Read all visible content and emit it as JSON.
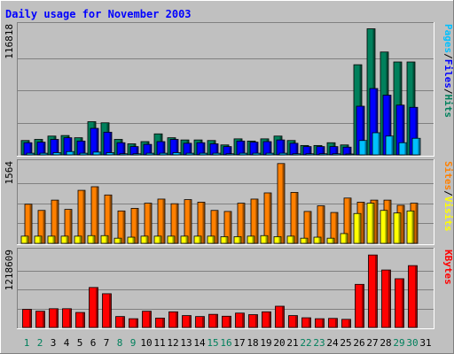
{
  "chart_data": {
    "type": "bar",
    "title": "Daily usage for November 2003",
    "categories": [
      "1",
      "2",
      "3",
      "4",
      "5",
      "6",
      "7",
      "8",
      "9",
      "10",
      "11",
      "12",
      "13",
      "14",
      "15",
      "16",
      "17",
      "18",
      "19",
      "20",
      "21",
      "22",
      "23",
      "24",
      "25",
      "26",
      "27",
      "28",
      "29",
      "30",
      "31"
    ],
    "weekend_days": [
      "1",
      "2",
      "8",
      "9",
      "15",
      "16",
      "22",
      "23",
      "29",
      "30"
    ],
    "panels": [
      {
        "name": "hits-files-pages",
        "ymax_label": "116818",
        "ymax": 116818,
        "legend": [
          "Pages",
          "/",
          "Files",
          "/",
          "Hits"
        ],
        "series": [
          {
            "name": "Hits",
            "color": "#00805c",
            "values": [
              13000,
              14000,
              17000,
              17500,
              15500,
              30000,
              29000,
              14000,
              10000,
              12000,
              19000,
              15500,
              13500,
              13500,
              13000,
              9000,
              14500,
              12500,
              14500,
              17000,
              13000,
              8500,
              8500,
              11000,
              9000,
              81500,
              114000,
              93000,
              84000,
              84000,
              0
            ]
          },
          {
            "name": "Files",
            "color": "#0000ff",
            "values": [
              11000,
              11500,
              14000,
              15500,
              12500,
              24000,
              20500,
              11000,
              7500,
              9500,
              12000,
              14000,
              10500,
              11000,
              10000,
              7500,
              12500,
              11500,
              12000,
              13500,
              10500,
              7500,
              7500,
              7500,
              7000,
              44000,
              60000,
              54000,
              45000,
              43000,
              0
            ]
          },
          {
            "name": "Pages",
            "color": "#00c0ff",
            "values": [
              1500,
              1500,
              2000,
              3000,
              1500,
              2500,
              2000,
              1000,
              1000,
              1500,
              1500,
              2000,
              1500,
              1500,
              1500,
              1000,
              1500,
              1500,
              1500,
              1500,
              1000,
              1000,
              1000,
              1000,
              800,
              13000,
              20000,
              17000,
              11000,
              15000,
              0
            ]
          }
        ]
      },
      {
        "name": "visits-sites",
        "ymax_label": "1564",
        "ymax": 1564,
        "legend": [
          "Sites",
          "/",
          "Visits"
        ],
        "series": [
          {
            "name": "Sites",
            "color": "#ff8000",
            "values": [
              760,
              640,
              840,
              660,
              1030,
              1100,
              940,
              630,
              680,
              780,
              860,
              770,
              850,
              800,
              640,
              620,
              780,
              860,
              980,
              1550,
              990,
              620,
              730,
              600,
              880,
              800,
              840,
              840,
              740,
              780,
              0
            ]
          },
          {
            "name": "Visits",
            "color": "#ffff00",
            "values": [
              140,
              140,
              140,
              140,
              140,
              150,
              150,
              100,
              120,
              140,
              140,
              140,
              140,
              140,
              140,
              130,
              130,
              140,
              150,
              130,
              140,
              100,
              120,
              100,
              190,
              580,
              780,
              640,
              590,
              630,
              0
            ]
          }
        ]
      },
      {
        "name": "kbytes",
        "ymax_label": "1218609",
        "ymax": 1218609,
        "legend": [
          "KBytes"
        ],
        "series": [
          {
            "name": "KBytes",
            "color": "#ff0000",
            "values": [
              290000,
              260000,
              300000,
              300000,
              240000,
              640000,
              540000,
              175000,
              140000,
              260000,
              150000,
              250000,
              190000,
              175000,
              210000,
              180000,
              230000,
              205000,
              250000,
              340000,
              190000,
              155000,
              140000,
              145000,
              130000,
              690000,
              1160000,
              920000,
              780000,
              990000,
              0
            ]
          }
        ]
      }
    ],
    "colors": {
      "background": "#c0c0c0",
      "title": "#0000ff",
      "grid": "#808080",
      "weekday_label": "#000000",
      "weekend_label": "#00805c",
      "legend_separator": "#000000"
    }
  }
}
